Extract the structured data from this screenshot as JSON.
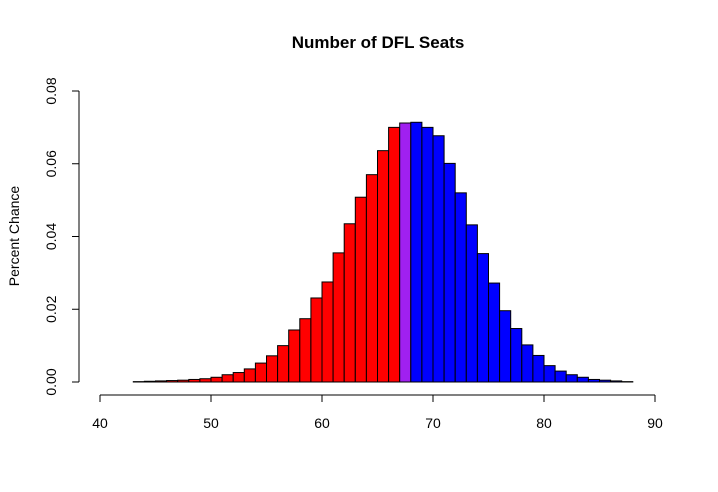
{
  "chart_data": {
    "type": "bar",
    "title": "Number of DFL Seats",
    "xlabel": "",
    "ylabel": "Percent Chance",
    "xlim": [
      40,
      90
    ],
    "ylim": [
      0,
      0.08
    ],
    "x_ticks": [
      "40",
      "50",
      "60",
      "70",
      "80",
      "90"
    ],
    "y_ticks": [
      "0.00",
      "0.02",
      "0.04",
      "0.06",
      "0.08"
    ],
    "bin_width": 1,
    "series": [
      {
        "x": [
          40,
          41,
          42,
          43,
          44,
          45,
          46,
          47,
          48,
          49,
          50,
          51,
          52,
          53,
          54,
          55,
          56,
          57,
          58,
          59,
          60,
          61,
          62,
          63,
          64,
          65,
          66,
          67,
          68,
          69,
          70,
          71,
          72,
          73,
          74,
          75,
          76,
          77,
          78,
          79,
          80,
          81,
          82,
          83,
          84,
          85,
          86,
          87,
          88,
          89
        ],
        "values": [
          0.0,
          0.0,
          0.0,
          0.0001,
          0.0002,
          0.0003,
          0.0004,
          0.0005,
          0.0007,
          0.0009,
          0.0013,
          0.002,
          0.0026,
          0.0036,
          0.0052,
          0.0072,
          0.01,
          0.0143,
          0.0174,
          0.0231,
          0.0275,
          0.0355,
          0.0435,
          0.0508,
          0.057,
          0.0636,
          0.07,
          0.0712,
          0.0714,
          0.07,
          0.0677,
          0.0601,
          0.052,
          0.0432,
          0.0353,
          0.0272,
          0.0196,
          0.0147,
          0.0102,
          0.0073,
          0.0045,
          0.003,
          0.002,
          0.0013,
          0.0007,
          0.0005,
          0.0003,
          0.0001,
          0.0,
          0.0
        ],
        "colors": [
          "#ff0000",
          "#ff0000",
          "#ff0000",
          "#ff0000",
          "#ff0000",
          "#ff0000",
          "#ff0000",
          "#ff0000",
          "#ff0000",
          "#ff0000",
          "#ff0000",
          "#ff0000",
          "#ff0000",
          "#ff0000",
          "#ff0000",
          "#ff0000",
          "#ff0000",
          "#ff0000",
          "#ff0000",
          "#ff0000",
          "#ff0000",
          "#ff0000",
          "#ff0000",
          "#ff0000",
          "#ff0000",
          "#ff0000",
          "#ff0000",
          "#a020f0",
          "#0000ff",
          "#0000ff",
          "#0000ff",
          "#0000ff",
          "#0000ff",
          "#0000ff",
          "#0000ff",
          "#0000ff",
          "#0000ff",
          "#0000ff",
          "#0000ff",
          "#0000ff",
          "#0000ff",
          "#0000ff",
          "#0000ff",
          "#0000ff",
          "#0000ff",
          "#0000ff",
          "#0000ff",
          "#0000ff",
          "#0000ff",
          "#0000ff"
        ]
      }
    ],
    "colors": {
      "below": "#ff0000",
      "tie": "#a020f0",
      "above": "#0000ff",
      "border": "#000000"
    },
    "grid": false,
    "legend": "none"
  }
}
